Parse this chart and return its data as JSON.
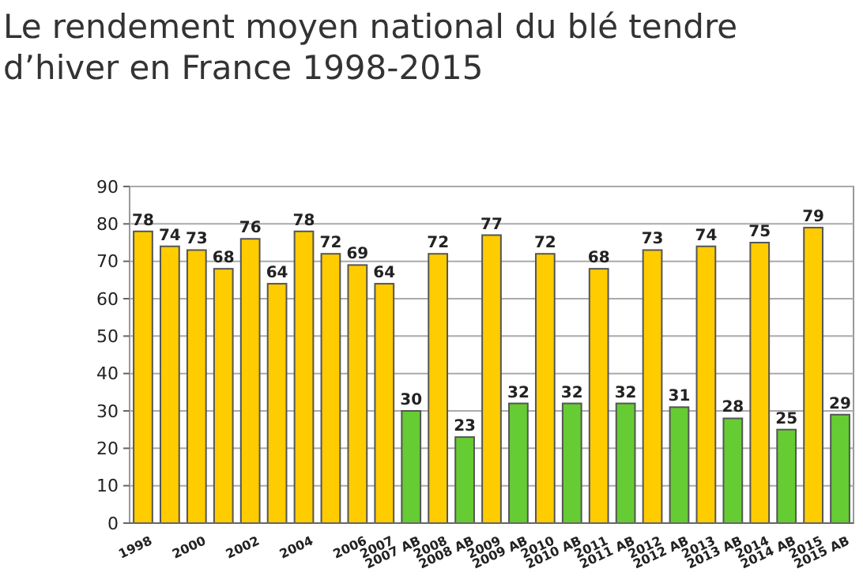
{
  "chart_data": {
    "type": "bar",
    "title": "Le rendement moyen national du blé tendre d’hiver en France 1998-2015",
    "categories": [
      "1998",
      null,
      "2000",
      null,
      "2002",
      null,
      "2004",
      null,
      "2006",
      "2007",
      "2007 AB",
      "2008",
      "2008 AB",
      "2009",
      "2009 AB",
      "2010",
      "2010 AB",
      "2011",
      "2011 AB",
      "2012",
      "2012 AB",
      "2013",
      "2013 AB",
      "2014",
      "2014 AB",
      "2015",
      "2015 AB"
    ],
    "values": [
      78,
      74,
      73,
      68,
      76,
      64,
      78,
      72,
      69,
      64,
      30,
      72,
      23,
      77,
      32,
      72,
      32,
      68,
      32,
      73,
      31,
      74,
      28,
      75,
      25,
      79,
      29
    ],
    "colors": [
      "#ffcc00",
      "#ffcc00",
      "#ffcc00",
      "#ffcc00",
      "#ffcc00",
      "#ffcc00",
      "#ffcc00",
      "#ffcc00",
      "#ffcc00",
      "#ffcc00",
      "#66cc33",
      "#ffcc00",
      "#66cc33",
      "#ffcc00",
      "#66cc33",
      "#ffcc00",
      "#66cc33",
      "#ffcc00",
      "#66cc33",
      "#ffcc00",
      "#66cc33",
      "#ffcc00",
      "#66cc33",
      "#ffcc00",
      "#66cc33",
      "#ffcc00",
      "#66cc33"
    ],
    "ylim": [
      0,
      90
    ],
    "yticks": [
      0,
      10,
      20,
      30,
      40,
      50,
      60,
      70,
      80,
      90
    ],
    "grid": "y",
    "data_labels": true
  }
}
